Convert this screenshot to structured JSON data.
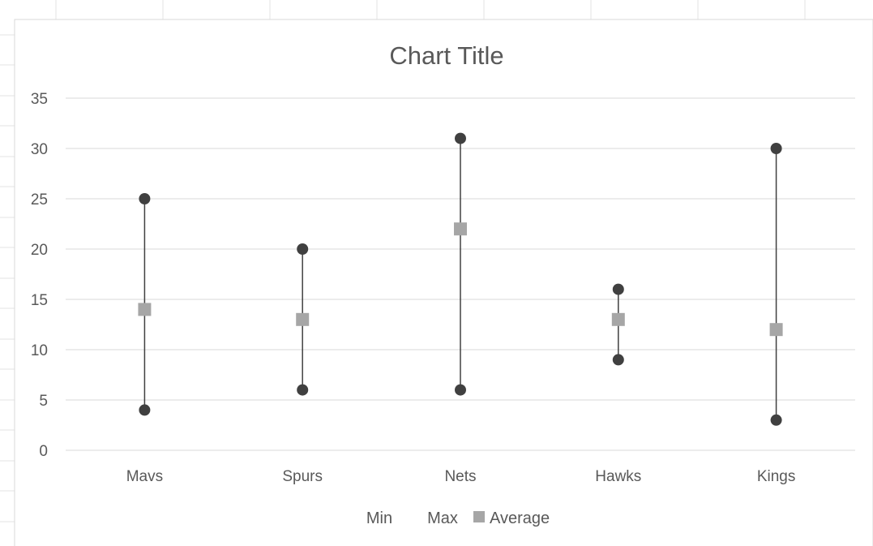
{
  "chart_data": {
    "type": "scatter",
    "title": "Chart Title",
    "categories": [
      "Mavs",
      "Spurs",
      "Nets",
      "Hawks",
      "Kings"
    ],
    "series": [
      {
        "name": "Min",
        "values": [
          4,
          6,
          6,
          9,
          3
        ]
      },
      {
        "name": "Max",
        "values": [
          25,
          20,
          31,
          16,
          30
        ]
      },
      {
        "name": "Average",
        "values": [
          14,
          13,
          22,
          13,
          12
        ]
      }
    ],
    "ylim": [
      0,
      35
    ],
    "yticks": [
      "0",
      "5",
      "10",
      "15",
      "20",
      "25",
      "30",
      "35"
    ],
    "grid": true,
    "legend_position": "bottom",
    "colors": {
      "min": "#404040",
      "max": "#404040",
      "average": "#a6a6a6",
      "range_line": "#404040",
      "grid": "#d9d9d9",
      "text": "#595959"
    }
  }
}
